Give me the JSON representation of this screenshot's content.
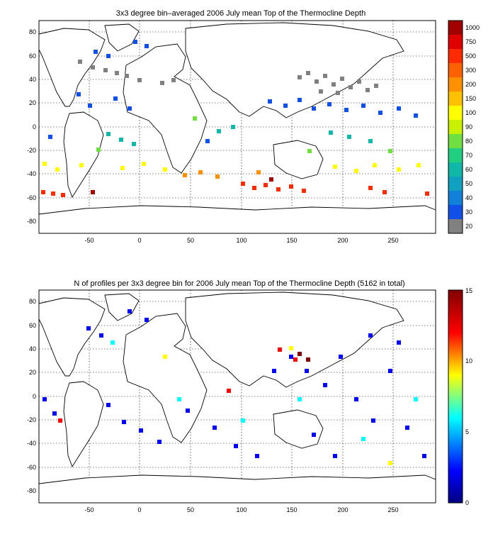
{
  "figure": {
    "panels": [
      {
        "id": "mean-depth",
        "title": "3x3 degree bin–averaged 2006 July mean Top of the Thermocline Depth",
        "x_ticks": [
          "-50",
          "0",
          "50",
          "100",
          "150",
          "200",
          "250"
        ],
        "y_ticks": [
          "80",
          "60",
          "40",
          "20",
          "0",
          "-20",
          "-40",
          "-60",
          "-80"
        ],
        "colorbar": {
          "labels": [
            "1000",
            "750",
            "500",
            "300",
            "200",
            "150",
            "100",
            "90",
            "80",
            "70",
            "60",
            "50",
            "40",
            "30",
            "20"
          ],
          "colors": [
            "#a00000",
            "#e00000",
            "#ff2a00",
            "#ff6000",
            "#ff9000",
            "#ffc000",
            "#ffff00",
            "#c8f000",
            "#70e040",
            "#20d080",
            "#10b8a8",
            "#10a0c0",
            "#1080d8",
            "#1050e8",
            "#808080"
          ]
        }
      },
      {
        "id": "profile-count",
        "title": "N of profiles per 3x3 degree bin for 2006 July mean Top of the Thermocline Depth  (5162 in total)",
        "x_ticks": [
          "-50",
          "0",
          "50",
          "100",
          "150",
          "200",
          "250"
        ],
        "y_ticks": [
          "80",
          "60",
          "40",
          "20",
          "0",
          "-20",
          "-40",
          "-60",
          "-80"
        ],
        "colorbar": {
          "labels": [
            "15",
            "10",
            "5",
            "0"
          ],
          "colors": [
            "#800000",
            "#ff0000",
            "#ffff00",
            "#00ffff",
            "#0000ff",
            "#000080"
          ]
        }
      }
    ]
  }
}
